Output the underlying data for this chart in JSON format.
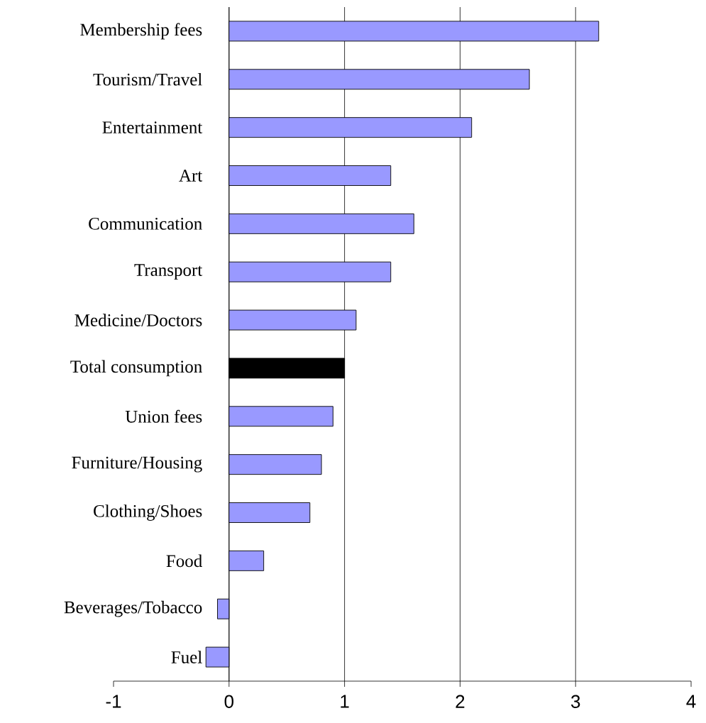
{
  "chart_data": {
    "type": "bar",
    "orientation": "horizontal",
    "categories": [
      "Membership fees",
      "Tourism/Travel",
      "Entertainment",
      "Art",
      "Communication",
      "Transport",
      "Medicine/Doctors",
      "Total consumption",
      "Union fees",
      "Furniture/Housing",
      "Clothing/Shoes",
      "Food",
      "Beverages/Tobacco",
      "Fuel"
    ],
    "values": [
      3.2,
      2.6,
      2.1,
      1.4,
      1.6,
      1.4,
      1.1,
      1.0,
      0.9,
      0.8,
      0.7,
      0.3,
      -0.1,
      -0.2
    ],
    "colors": [
      "#9999ff",
      "#9999ff",
      "#9999ff",
      "#9999ff",
      "#9999ff",
      "#9999ff",
      "#9999ff",
      "#000000",
      "#9999ff",
      "#9999ff",
      "#9999ff",
      "#9999ff",
      "#9999ff",
      "#9999ff"
    ],
    "xlim": [
      -1,
      4
    ],
    "xticks": [
      -1,
      0,
      1,
      2,
      3,
      4
    ],
    "grid": "x"
  }
}
